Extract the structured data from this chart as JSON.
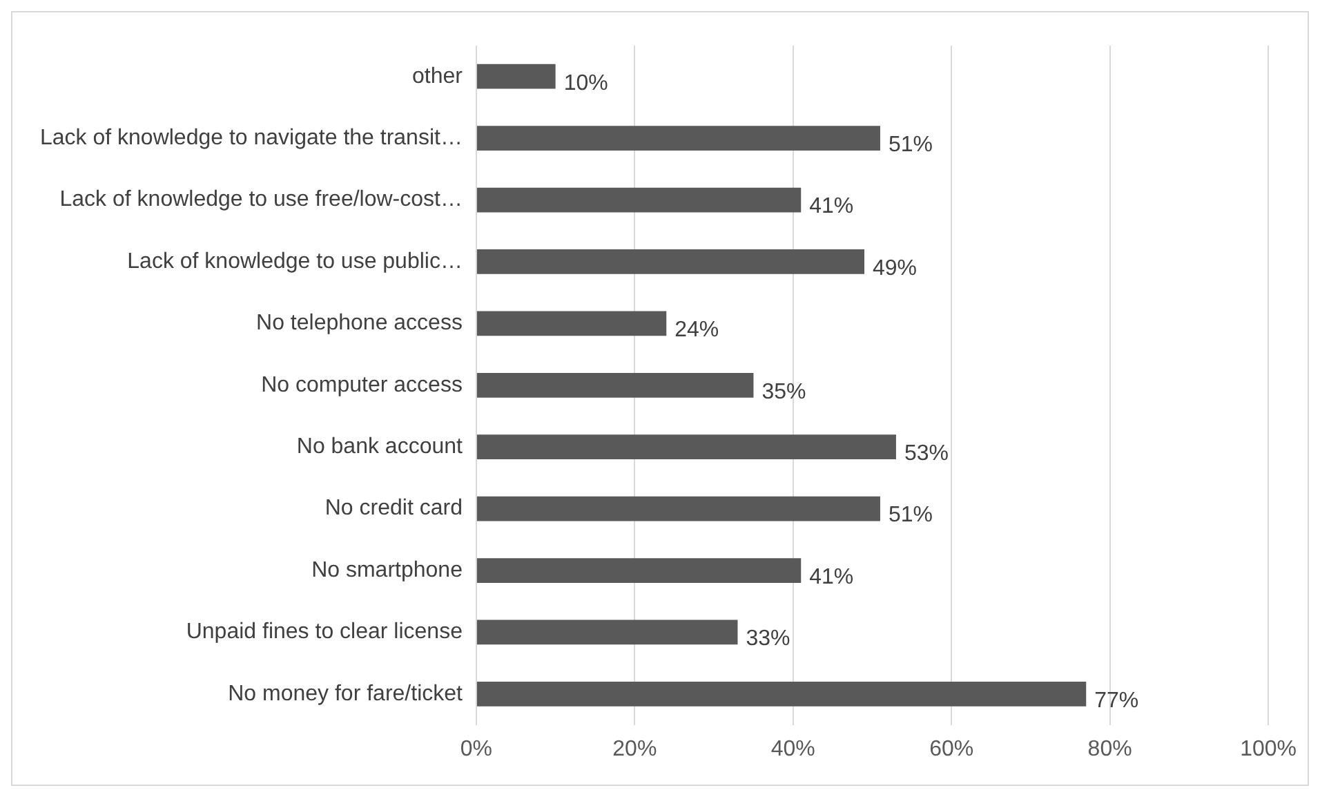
{
  "chart_data": {
    "type": "bar",
    "orientation": "horizontal",
    "categories": [
      "other",
      "Lack of knowledge to navigate the transit…",
      "Lack of knowledge to use free/low-cost…",
      "Lack of knowledge to use public…",
      "No telephone access",
      "No computer access",
      "No bank account",
      "No credit card",
      "No smartphone",
      "Unpaid fines to clear license",
      "No money for fare/ticket"
    ],
    "values": [
      10,
      51,
      41,
      49,
      24,
      35,
      53,
      51,
      41,
      33,
      77
    ],
    "value_labels": [
      "10%",
      "51%",
      "41%",
      "49%",
      "24%",
      "35%",
      "53%",
      "51%",
      "41%",
      "33%",
      "77%"
    ],
    "color": "#595959",
    "xlim": [
      0,
      100
    ],
    "xticks": [
      {
        "value": 0,
        "label": "0%"
      },
      {
        "value": 20,
        "label": "20%"
      },
      {
        "value": 40,
        "label": "40%"
      },
      {
        "value": 60,
        "label": "60%"
      },
      {
        "value": 80,
        "label": "80%"
      },
      {
        "value": 100,
        "label": "100%"
      }
    ],
    "grid": "x",
    "legend": false
  }
}
